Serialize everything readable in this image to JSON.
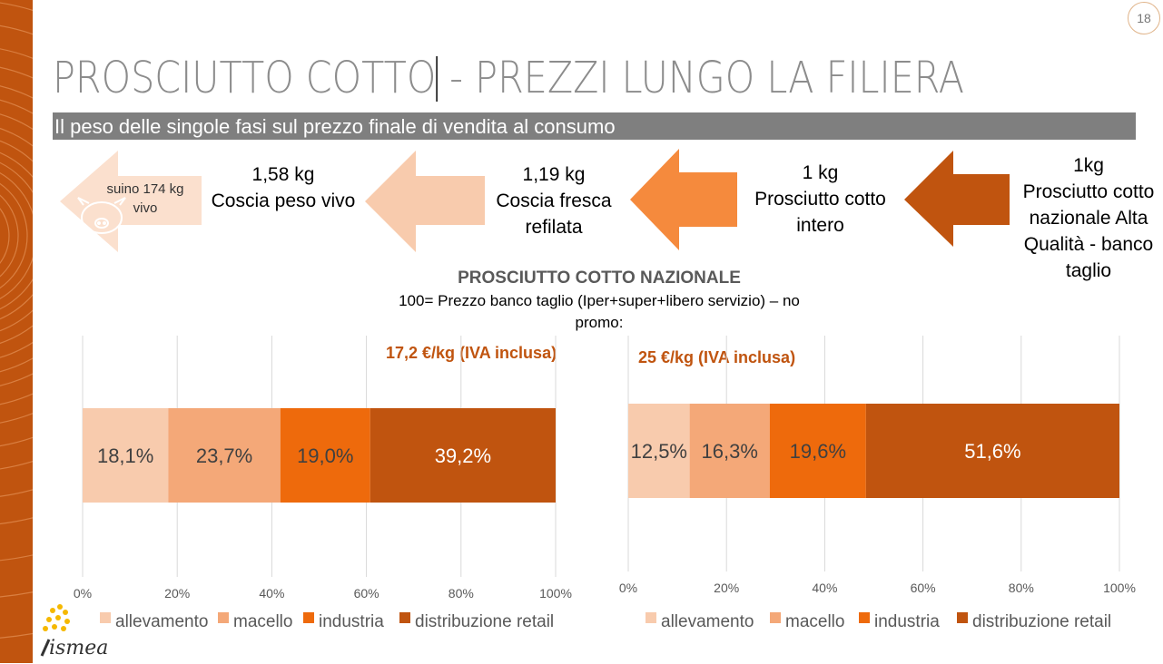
{
  "page_number": "18",
  "title_part1": "PROSCIUTTO COTTO",
  "title_part2": " - PREZZI LUNGO LA FILIERA",
  "subtitle": "Il peso delle singole fasi sul prezzo finale di vendita al consumo",
  "steps": {
    "pig": {
      "line1": "suino 174 kg",
      "line2": "vivo"
    },
    "step1": {
      "line1": "1,58 kg",
      "line2": "Coscia peso vivo"
    },
    "step2": {
      "line1": "1,19 kg",
      "line2": "Coscia fresca",
      "line3": "refilata"
    },
    "step3": {
      "line1": "1 kg",
      "line2": "Prosciutto cotto",
      "line3": "intero"
    },
    "step4": {
      "line1": "1kg",
      "line2": "Prosciutto cotto",
      "line3": "nazionale Alta",
      "line4": "Qualità - banco",
      "line5": "taglio"
    }
  },
  "colors": {
    "allevamento": "#f8cbad",
    "macello": "#f4a878",
    "industria": "#ee6a0c",
    "distribuzione": "#c0540f",
    "arrow1": "#fbe0ce",
    "arrow2": "#f8cbad",
    "arrow3": "#f58a3d",
    "arrow4": "#c0540f"
  },
  "chart_heading": "PROSCIUTTO COTTO NAZIONALE",
  "chart_subheading_1": "100= Prezzo banco taglio (Iper+super+libero servizio) – no",
  "chart_subheading_2": "promo:",
  "chart_data": [
    {
      "type": "bar",
      "orientation": "horizontal",
      "stacked": true,
      "annotation": "17,2 €/kg  (IVA inclusa)",
      "xlim": [
        0,
        100
      ],
      "x_ticks": [
        "0%",
        "20%",
        "40%",
        "60%",
        "80%",
        "100%"
      ],
      "grid": true,
      "legend_position": "bottom",
      "series": [
        {
          "name": "allevamento",
          "values": [
            18.1
          ],
          "label": "18,1%"
        },
        {
          "name": "macello",
          "values": [
            23.7
          ],
          "label": "23,7%"
        },
        {
          "name": "industria",
          "values": [
            19.0
          ],
          "label": "19,0%"
        },
        {
          "name": "distribuzione retail",
          "values": [
            39.2
          ],
          "label": "39,2%"
        }
      ]
    },
    {
      "type": "bar",
      "orientation": "horizontal",
      "stacked": true,
      "annotation": "25 €/kg (IVA inclusa)",
      "xlim": [
        0,
        100
      ],
      "x_ticks": [
        "0%",
        "20%",
        "40%",
        "60%",
        "80%",
        "100%"
      ],
      "grid": true,
      "legend_position": "bottom",
      "series": [
        {
          "name": "allevamento",
          "values": [
            12.5
          ],
          "label": "12,5%"
        },
        {
          "name": "macello",
          "values": [
            16.3
          ],
          "label": "16,3%"
        },
        {
          "name": "industria",
          "values": [
            19.6
          ],
          "label": "19,6%"
        },
        {
          "name": "distribuzione retail",
          "values": [
            51.6
          ],
          "label": "51,6%"
        }
      ]
    }
  ],
  "logo_text": "ismea"
}
